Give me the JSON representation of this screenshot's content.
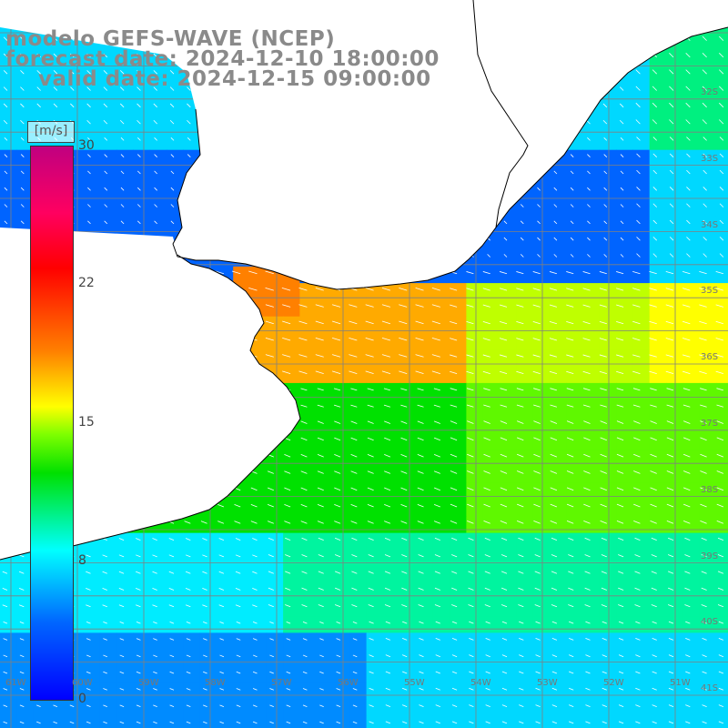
{
  "title": {
    "line1": "modelo GEFS-WAVE (NCEP)",
    "line2": "forecast date: 2024-12-10 18:00:00",
    "line3": "valid date: 2024-12-15 09:00:00"
  },
  "colorbar": {
    "unit": "[m/s]",
    "ticks": [
      "30",
      "22",
      "15",
      "8",
      "0"
    ],
    "tick_values": [
      30,
      22,
      15,
      8,
      0
    ]
  },
  "lat_labels": [
    "32S",
    "33S",
    "34S",
    "35S",
    "36S",
    "37S",
    "38S",
    "39S",
    "40S",
    "41S"
  ],
  "lon_labels": [
    "61W",
    "60W",
    "59W",
    "58W",
    "57W",
    "56W",
    "55W",
    "54W",
    "53W",
    "52W",
    "51W"
  ],
  "colors": {
    "land": "#ffffff",
    "coast": "#000000",
    "grid": "#808080",
    "vector": "#ffffff"
  }
}
